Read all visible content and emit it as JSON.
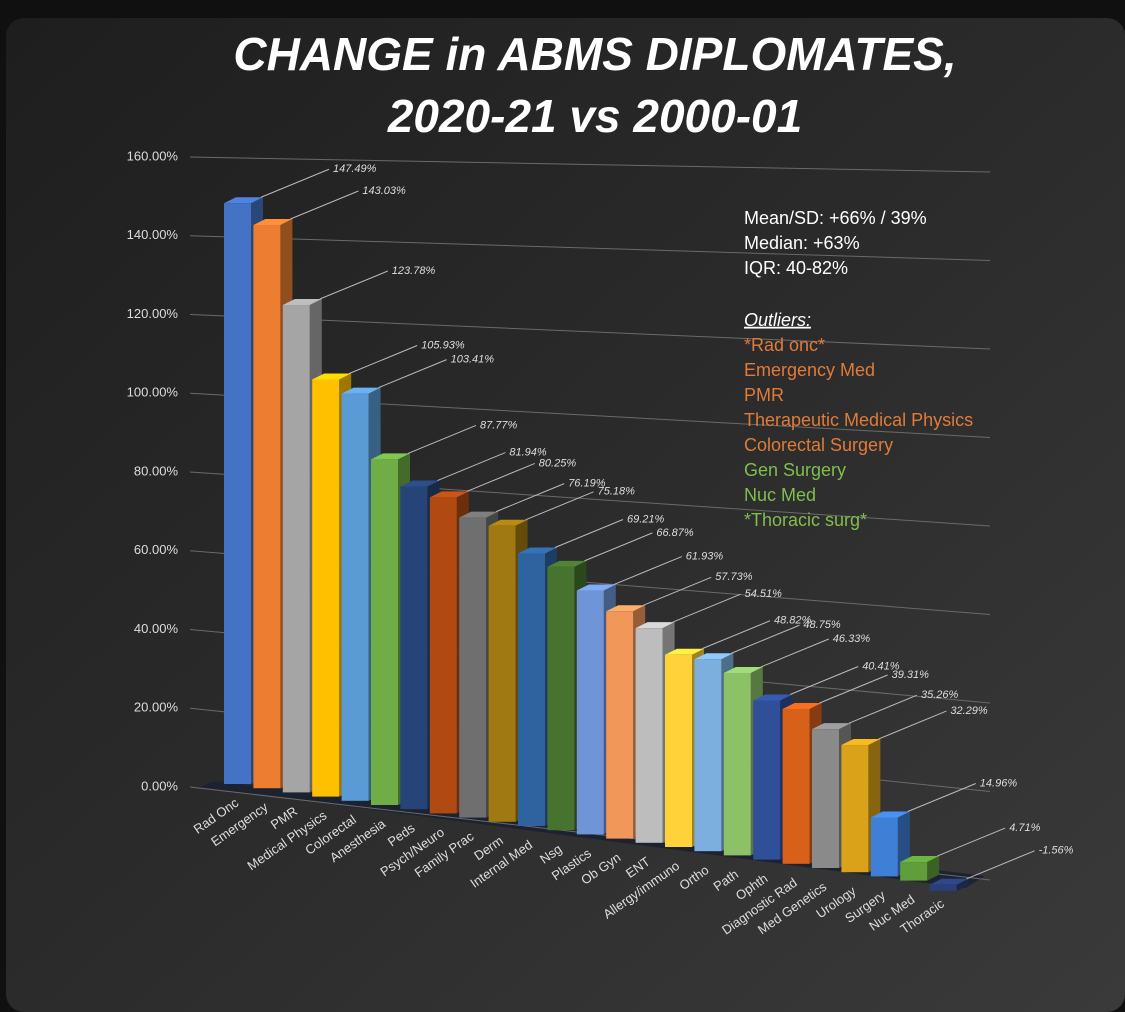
{
  "chart_data": {
    "type": "bar3d",
    "title": [
      "CHANGE in ABMS DIPLOMATES,",
      "2020-21 vs 2000-01"
    ],
    "categories": [
      "Rad Onc",
      "Emergency",
      "PMR",
      "Medical Physics",
      "Colorectal",
      "Anesthesia",
      "Peds",
      "Psych/Neuro",
      "Family Prac",
      "Derm",
      "Internal Med",
      "Nsg",
      "Plastics",
      "Ob Gyn",
      "ENT",
      "Allergy/immuno",
      "Ortho",
      "Path",
      "Ophth",
      "Diagnostic Rad",
      "Med Genetics",
      "Urology",
      "Surgery",
      "Nuc Med",
      "Thoracic"
    ],
    "values": [
      147.49,
      143.03,
      123.78,
      105.93,
      103.41,
      87.77,
      81.94,
      80.25,
      76.19,
      75.18,
      69.21,
      66.87,
      61.93,
      57.73,
      54.51,
      48.82,
      48.75,
      46.33,
      40.41,
      39.31,
      35.26,
      32.29,
      14.96,
      4.71,
      -1.56
    ],
    "value_labels": [
      "147.49%",
      "143.03%",
      "123.78%",
      "105.93%",
      "103.41%",
      "87.77%",
      "81.94%",
      "80.25%",
      "76.19%",
      "75.18%",
      "69.21%",
      "66.87%",
      "61.93%",
      "57.73%",
      "54.51%",
      "48.82%",
      "48.75%",
      "46.33%",
      "40.41%",
      "39.31%",
      "35.26%",
      "32.29%",
      "14.96%",
      "4.71%",
      "-1.56%"
    ],
    "colors": [
      "#4472c4",
      "#ed7d31",
      "#a5a5a5",
      "#ffc000",
      "#5b9bd5",
      "#70ad47",
      "#264478",
      "#b04a12",
      "#6f6f6f",
      "#a07a10",
      "#2e63a0",
      "#46732d",
      "#6f95d8",
      "#f1975a",
      "#bdbdbd",
      "#ffd23a",
      "#7cafdd",
      "#8cc168",
      "#2f4f99",
      "#d8611a",
      "#8a8a8a",
      "#d9a21a",
      "#3f7fd6",
      "#5f9e3a",
      "#2a3f78"
    ],
    "ylim": [
      0,
      160
    ],
    "yticks": [
      {
        "value": 0,
        "label": "0.00%"
      },
      {
        "value": 20,
        "label": "20.00%"
      },
      {
        "value": 40,
        "label": "40.00%"
      },
      {
        "value": 60,
        "label": "60.00%"
      },
      {
        "value": 80,
        "label": "80.00%"
      },
      {
        "value": 100,
        "label": "100.00%"
      },
      {
        "value": 120,
        "label": "120.00%"
      },
      {
        "value": 140,
        "label": "140.00%"
      },
      {
        "value": 160,
        "label": "160.00%"
      }
    ],
    "grid": true,
    "annotation_lines": [
      "Mean/SD: +66% / 39%",
      "Median: +63%",
      "IQR: 40-82%"
    ],
    "outliers_title": "Outliers:",
    "outliers": [
      {
        "text": "*Rad onc*",
        "color": "#e07b39"
      },
      {
        "text": "Emergency Med",
        "color": "#e07b39"
      },
      {
        "text": "PMR",
        "color": "#e07b39"
      },
      {
        "text": "Therapeutic Medical Physics",
        "color": "#e07b39"
      },
      {
        "text": "Colorectal Surgery",
        "color": "#e07b39"
      },
      {
        "text": "Gen Surgery",
        "color": "#7fbf4d"
      },
      {
        "text": "Nuc Med",
        "color": "#7fbf4d"
      },
      {
        "text": "*Thoracic surg*",
        "color": "#7fbf4d"
      }
    ]
  }
}
